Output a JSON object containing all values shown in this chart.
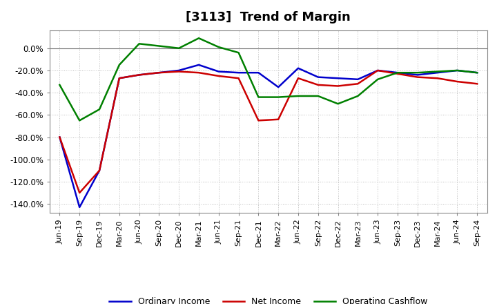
{
  "title": "[3113]  Trend of Margin",
  "x_labels": [
    "Jun-19",
    "Sep-19",
    "Dec-19",
    "Mar-20",
    "Jun-20",
    "Sep-20",
    "Dec-20",
    "Mar-21",
    "Jun-21",
    "Sep-21",
    "Dec-21",
    "Mar-22",
    "Jun-22",
    "Sep-22",
    "Dec-22",
    "Mar-23",
    "Jun-23",
    "Sep-23",
    "Dec-23",
    "Mar-24",
    "Jun-24",
    "Sep-24"
  ],
  "ordinary_income": [
    -80,
    -143,
    -110,
    -27,
    -24,
    -22,
    -20,
    -15,
    -21,
    -22,
    -22,
    -35,
    -18,
    -26,
    -27,
    -28,
    -20,
    -22,
    -24,
    -22,
    -20,
    -22
  ],
  "net_income": [
    -80,
    -130,
    -110,
    -27,
    -24,
    -22,
    -21,
    -22,
    -25,
    -27,
    -65,
    -64,
    -27,
    -33,
    -34,
    -32,
    -20,
    -23,
    -26,
    -27,
    -30,
    -32
  ],
  "operating_cashflow": [
    -33,
    -65,
    -55,
    -15,
    4,
    2,
    0,
    9,
    1,
    -4,
    -44,
    -44,
    -43,
    -43,
    -50,
    -43,
    -28,
    -22,
    -22,
    -21,
    -20,
    -22
  ],
  "ylim_min": -148,
  "ylim_max": 16,
  "yticks": [
    0,
    -20,
    -40,
    -60,
    -80,
    -100,
    -120,
    -140
  ],
  "color_ordinary": "#0000cc",
  "color_net": "#cc0000",
  "color_cashflow": "#008000",
  "bg_color": "#ffffff",
  "grid_color": "#aaaaaa",
  "title_fontsize": 13,
  "tick_fontsize": 8,
  "legend_fontsize": 9,
  "linewidth": 1.8
}
